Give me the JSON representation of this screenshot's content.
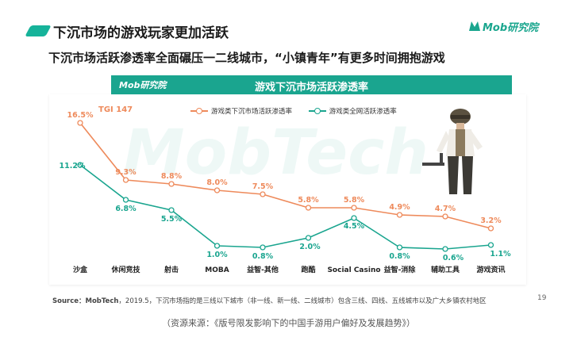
{
  "header": {
    "title": "下沉市场的游戏玩家更加活跃",
    "subtitle": "下沉市场活跃渗透率全面碾压一二线城市，“小镇青年”有更多时间拥抱游戏",
    "brand": "Mob研究院"
  },
  "chart_header": {
    "logo": "Mob研究院",
    "title": "游戏下沉市场活跃渗透率"
  },
  "watermark": "MobTech",
  "annotation": "TGI 147",
  "chart_data": {
    "type": "line",
    "title": "游戏下沉市场活跃渗透率",
    "categories": [
      "沙盒",
      "休闲竞技",
      "射击",
      "MOBA",
      "益智-其他",
      "跑酷",
      "Social Casino",
      "益智-消除",
      "辅助工具",
      "游戏资讯"
    ],
    "series": [
      {
        "name": "游戏类下沉市场活跃渗透率",
        "color": "#ee8a5b",
        "values": [
          16.5,
          9.3,
          8.8,
          8.0,
          7.5,
          5.8,
          5.8,
          4.9,
          4.7,
          3.2
        ],
        "labels": [
          "16.5%",
          "9.3%",
          "8.8%",
          "8.0%",
          "7.5%",
          "5.8%",
          "5.8%",
          "4.9%",
          "4.7%",
          "3.2%"
        ]
      },
      {
        "name": "游戏类全网活跃渗透率",
        "color": "#1aa58f",
        "values": [
          11.2,
          6.8,
          5.5,
          1.0,
          0.8,
          2.0,
          4.5,
          0.8,
          0.6,
          1.1
        ],
        "labels": [
          "11.2%",
          "6.8%",
          "5.5%",
          "1.0%",
          "0.8%",
          "2.0%",
          "4.5%",
          "0.8%",
          "0.6%",
          "1.1%"
        ]
      }
    ],
    "ylim": [
      0,
      17
    ],
    "legend_position": "top"
  },
  "footer": {
    "source_label": "Source：MobTech",
    "source_text": "，2019.5，下沉市场指的是三线以下城市（非一线、新一线、二线城市）包含三线、四线、五线城市以及广大乡镇农村地区",
    "page_number": "19",
    "caption": "（资源来源：《版号限发影响下的中国手游用户偏好及发展趋势》）"
  }
}
